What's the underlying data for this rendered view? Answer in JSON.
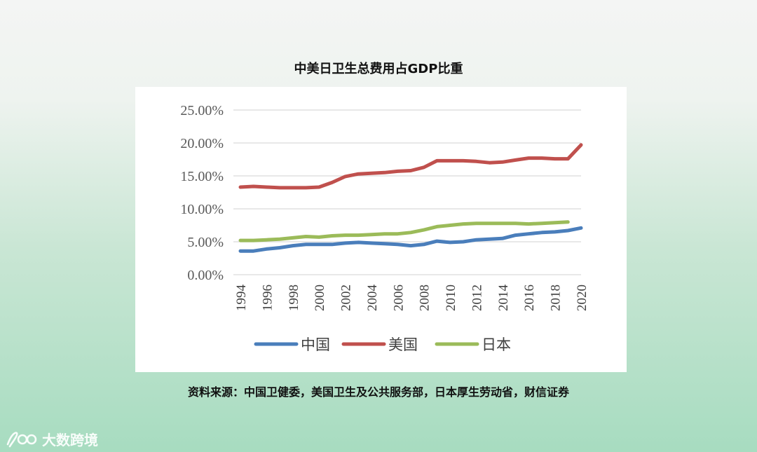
{
  "title": "中美日卫生总费用占GDP比重",
  "source": "资料来源：中国卫健委，美国卫生及公共服务部，日本厚生劳动省，财信证券",
  "watermark": {
    "text": "大数跨境",
    "logo_text": "100"
  },
  "chart_data": {
    "type": "line",
    "title": "中美日卫生总费用占GDP比重",
    "xlabel": "",
    "ylabel": "",
    "ylim": [
      0,
      25
    ],
    "y_ticks": [
      "0.00%",
      "5.00%",
      "10.00%",
      "15.00%",
      "20.00%",
      "25.00%"
    ],
    "x_ticks": [
      "1994",
      "1996",
      "1998",
      "2000",
      "2002",
      "2004",
      "2006",
      "2008",
      "2010",
      "2012",
      "2014",
      "2016",
      "2018",
      "2020"
    ],
    "x": [
      1994,
      1995,
      1996,
      1997,
      1998,
      1999,
      2000,
      2001,
      2002,
      2003,
      2004,
      2005,
      2006,
      2007,
      2008,
      2009,
      2010,
      2011,
      2012,
      2013,
      2014,
      2015,
      2016,
      2017,
      2018,
      2019,
      2020
    ],
    "grid": true,
    "legend": "bottom",
    "series": [
      {
        "name": "中国",
        "color": "#4a7ebb",
        "values": [
          3.6,
          3.6,
          3.9,
          4.1,
          4.4,
          4.6,
          4.6,
          4.6,
          4.8,
          4.9,
          4.8,
          4.7,
          4.6,
          4.4,
          4.6,
          5.1,
          4.9,
          5.0,
          5.3,
          5.4,
          5.5,
          6.0,
          6.2,
          6.4,
          6.5,
          6.7,
          7.1
        ]
      },
      {
        "name": "美国",
        "color": "#c0504d",
        "values": [
          13.3,
          13.4,
          13.3,
          13.2,
          13.2,
          13.2,
          13.3,
          14.0,
          14.9,
          15.3,
          15.4,
          15.5,
          15.7,
          15.8,
          16.3,
          17.3,
          17.3,
          17.3,
          17.2,
          17.0,
          17.1,
          17.4,
          17.7,
          17.7,
          17.6,
          17.6,
          19.7
        ]
      },
      {
        "name": "日本",
        "color": "#9bbb59",
        "values": [
          5.2,
          5.2,
          5.3,
          5.4,
          5.6,
          5.8,
          5.7,
          5.9,
          6.0,
          6.0,
          6.1,
          6.2,
          6.2,
          6.4,
          6.8,
          7.3,
          7.5,
          7.7,
          7.8,
          7.8,
          7.8,
          7.8,
          7.7,
          7.8,
          7.9,
          8.0,
          null
        ]
      }
    ]
  }
}
